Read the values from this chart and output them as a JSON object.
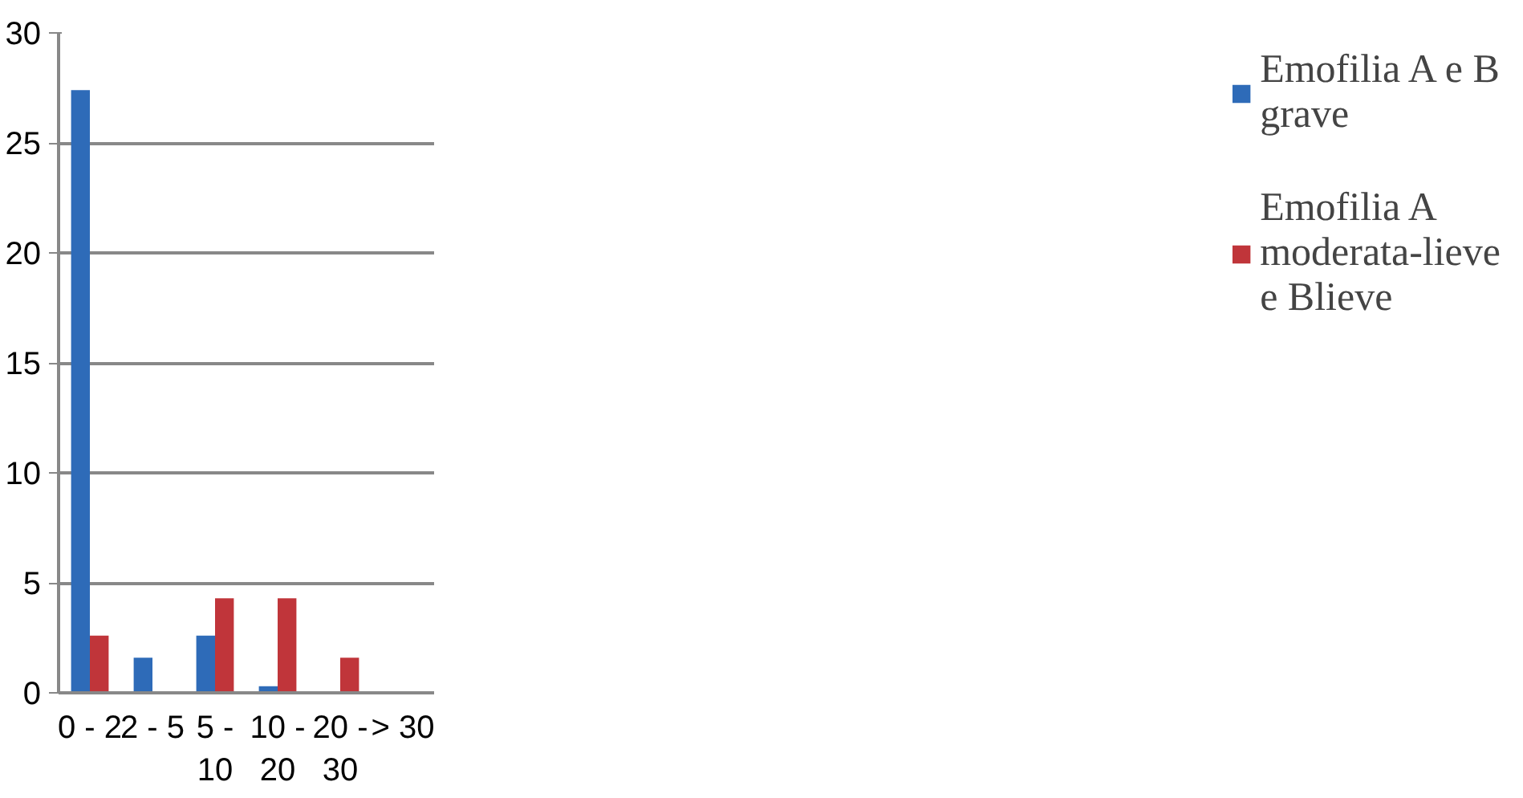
{
  "chart_data": {
    "type": "bar",
    "categories": [
      "0 - 2",
      "2 - 5",
      "5 - 10",
      "10 - 20",
      "20 - 30",
      "> 30"
    ],
    "series": [
      {
        "name": "Emofilia A e B grave",
        "color": "#2e6bb8",
        "values": [
          27.4,
          1.6,
          2.6,
          0.3,
          0,
          0
        ]
      },
      {
        "name": "Emofilia A moderata-lieve e Blieve",
        "color": "#c0353a",
        "values": [
          2.6,
          0,
          4.3,
          4.3,
          1.6,
          0
        ]
      }
    ],
    "ylim": [
      0,
      30
    ],
    "yticks": [
      0,
      5,
      10,
      15,
      20,
      25,
      30
    ],
    "grid": "y",
    "legend": "right"
  }
}
